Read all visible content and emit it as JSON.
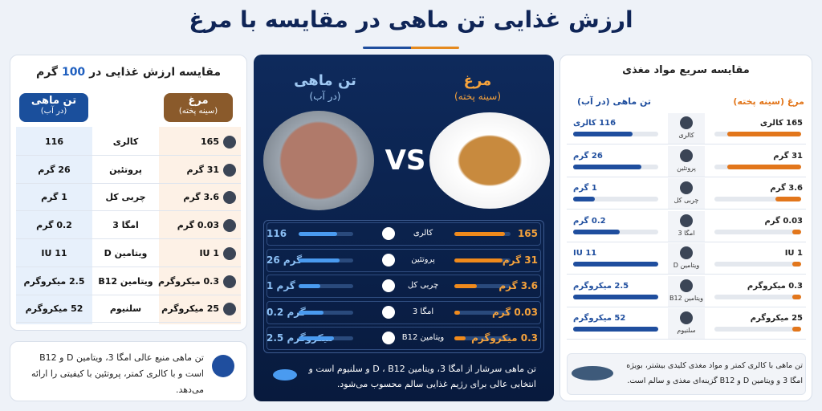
{
  "header": {
    "title": "ارزش غذایی تن ماهی در مقایسه با مرغ"
  },
  "left": {
    "title_start": "مقایسه ارزش غذایی در",
    "title_amount": "100",
    "title_unit": "گرم",
    "tuna": "تن ماهی",
    "tuna_sub": "(در آب)",
    "chicken": "مرغ",
    "chicken_sub": "(سینه پخته)",
    "rows": [
      [
        "116",
        "کالری",
        "165"
      ],
      [
        "26 گرم",
        "پروتئین",
        "31 گرم"
      ],
      [
        "1 گرم",
        "چربی کل",
        "3.6 گرم"
      ],
      [
        "0.2 گرم",
        "امگا 3",
        "0.03 گرم"
      ],
      [
        "11 IU",
        "ویتامین D",
        "1 IU"
      ],
      [
        "2.5 میکروگرم",
        "ویتامین B12",
        "0.3 میکروگرم"
      ],
      [
        "52 میکروگرم",
        "سلنیوم",
        "25 میکروگرم"
      ]
    ],
    "note": "تن ماهی منبع عالی امگا 3، ویتامین D و B12 است و با کالری کمتر، پروتئین با کیفیتی را ارائه می‌دهد."
  },
  "middle": {
    "tuna": "تن ماهی",
    "tuna_sub": "(در آب)",
    "chicken": "مرغ",
    "chicken_sub": "(سینه پخته)",
    "vs": "VS",
    "rows": [
      {
        "tuna": "116",
        "nutrient": "کالری",
        "chicken": "165",
        "tuna_bar": 70,
        "chicken_bar": 90
      },
      {
        "tuna": "26 گرم",
        "nutrient": "پروتئین",
        "chicken": "31 گرم",
        "tuna_bar": 75,
        "chicken_bar": 85
      },
      {
        "tuna": "1 گرم",
        "nutrient": "چربی کل",
        "chicken": "3.6 گرم",
        "tuna_bar": 40,
        "chicken_bar": 40
      },
      {
        "tuna": "0.2 گرم",
        "nutrient": "امگا 3",
        "chicken": "0.03 گرم",
        "tuna_bar": 45,
        "chicken_bar": 10
      },
      {
        "tuna": "2.5 میکروگرم",
        "nutrient": "ویتامین B12",
        "chicken": "0.3 میکروگرم",
        "tuna_bar": 65,
        "chicken_bar": 20
      }
    ],
    "note": "تن ماهی سرشار از امگا 3، ویتامین D ، B12 و سلنیوم است و انتخابی عالی برای رژیم غذایی سالم محسوب می‌شود."
  },
  "right": {
    "title": "مقایسه سریع مواد مغذی",
    "chicken": "مرغ (سینه پخته)",
    "tuna": "تن ماهی (در آب)",
    "rows": [
      {
        "chicken": "165 کالری",
        "nutrient": "کالری",
        "tuna": "116 کالری",
        "chicken_bar": 85,
        "tuna_bar": 70
      },
      {
        "chicken": "31 گرم",
        "nutrient": "پروتئین",
        "tuna": "26 گرم",
        "chicken_bar": 85,
        "tuna_bar": 80
      },
      {
        "chicken": "3.6 گرم",
        "nutrient": "چربی کل",
        "tuna": "1 گرم",
        "chicken_bar": 30,
        "tuna_bar": 25
      },
      {
        "chicken": "0.03 گرم",
        "nutrient": "امگا 3",
        "tuna": "0.2 گرم",
        "chicken_bar": 10,
        "tuna_bar": 55
      },
      {
        "chicken": "1 IU",
        "nutrient": "ویتامین D",
        "tuna": "11 IU",
        "chicken_bar": 10,
        "tuna_bar": 100
      },
      {
        "chicken": "0.3 میکروگرم",
        "nutrient": "ویتامین B12",
        "tuna": "2.5 میکروگرم",
        "chicken_bar": 10,
        "tuna_bar": 100
      },
      {
        "chicken": "25 میکروگرم",
        "nutrient": "سلنیوم",
        "tuna": "52 میکروگرم",
        "chicken_bar": 10,
        "tuna_bar": 100
      }
    ],
    "note": "تن ماهی با کالری کمتر و مواد مغذی کلیدی بیشتر، بویژه امگا 3 و ویتامین D و B12 گزینه‌ای مغذی و سالم است."
  }
}
